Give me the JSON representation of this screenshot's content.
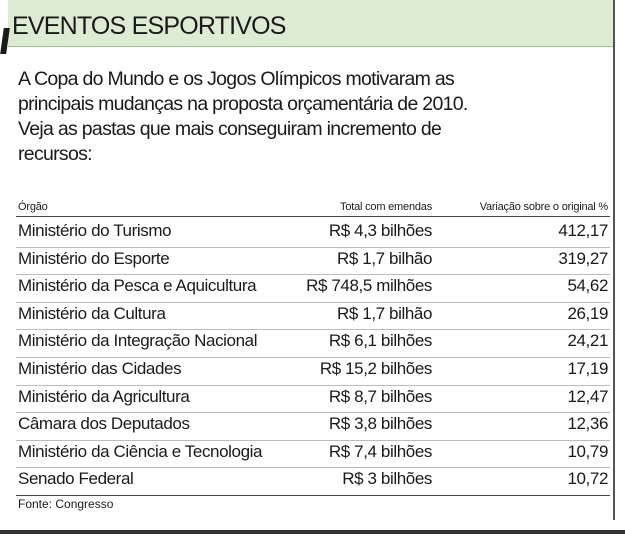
{
  "header": {
    "title": "EVENTOS ESPORTIVOS"
  },
  "intro": {
    "lines": [
      "A Copa do Mundo e os Jogos Olímpicos motivaram as",
      "principais mudanças na proposta orçamentária de 2010.",
      "Veja as pastas que mais conseguiram incremento de",
      "recursos:"
    ]
  },
  "table": {
    "columns": [
      "Órgão",
      "Total com emendas",
      "Variação sobre o original %"
    ],
    "rows": [
      [
        "Ministério do Turismo",
        "R$ 4,3 bilhões",
        "412,17"
      ],
      [
        "Ministério do Esporte",
        "R$ 1,7 bilhão",
        "319,27"
      ],
      [
        "Ministério da Pesca e Aquicultura",
        "R$ 748,5 milhões",
        "54,62"
      ],
      [
        "Ministério da Cultura",
        "R$ 1,7 bilhão",
        "26,19"
      ],
      [
        "Ministério da Integração Nacional",
        "R$ 6,1 bilhões",
        "24,21"
      ],
      [
        "Ministério das Cidades",
        "R$ 15,2 bilhões",
        "17,19"
      ],
      [
        "Ministério da Agricultura",
        "R$ 8,7 bilhões",
        "12,47"
      ],
      [
        "Câmara dos Deputados",
        "R$ 3,8 bilhões",
        "12,36"
      ],
      [
        "Ministério da Ciência e Tecnologia",
        "R$ 7,4 bilhões",
        "10,79"
      ],
      [
        "Senado Federal",
        "R$ 3 bilhões",
        "10,72"
      ]
    ],
    "source": "Fonte: Congresso"
  }
}
